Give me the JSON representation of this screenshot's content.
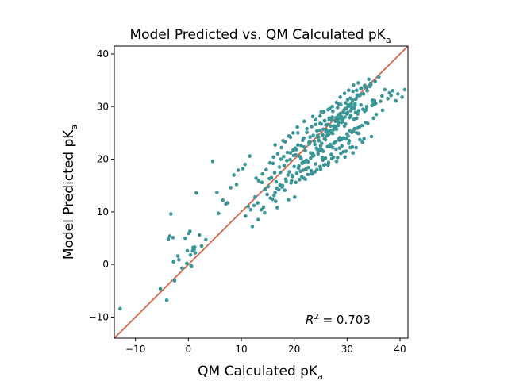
{
  "chart_data": {
    "type": "scatter",
    "title": "Model Predicted vs. QM Calculated pK",
    "title_sub": "a",
    "xlabel": "QM Calculated pK",
    "xlabel_sub": "a",
    "ylabel": "Model Predicted pK",
    "ylabel_sub": "a",
    "annotation": {
      "r_symbol": "R",
      "r_exponent": "2",
      "r_value": " = 0.703"
    },
    "xlim": [
      -14,
      41.5
    ],
    "ylim": [
      -14,
      41.5
    ],
    "xticks": [
      -10,
      0,
      10,
      20,
      30,
      40
    ],
    "yticks": [
      -10,
      0,
      10,
      20,
      30,
      40
    ],
    "xtick_labels": [
      "−10",
      "0",
      "10",
      "20",
      "30",
      "40"
    ],
    "ytick_labels": [
      "−10",
      "0",
      "10",
      "20",
      "30",
      "40"
    ],
    "grid": false,
    "reference_line": {
      "x": [
        -14,
        41.5
      ],
      "y": [
        -14,
        41.5
      ],
      "color": "#d2644a"
    },
    "marker_color": "#3a9597",
    "series": [
      {
        "x": [
          -12.9,
          -5.3,
          -4.1,
          -3.8,
          -3.3,
          -2.9,
          -2.6,
          -2.0,
          -1.2,
          -0.6,
          -0.2,
          0.1,
          0.4,
          0.6,
          0.9,
          1.3,
          2.1,
          3.3,
          -3.5,
          -2.8,
          -1.8,
          -0.3,
          0.8,
          1.2,
          0.3,
          2.5,
          0.5,
          1.1,
          1.5,
          4.6,
          5.4,
          6.5,
          7.1,
          8.0,
          8.6,
          9.4,
          10.3,
          10.7,
          11.6,
          12.8,
          13.3,
          14.0,
          14.7,
          15.4,
          16.1,
          16.9,
          17.6,
          18.3,
          19.0,
          19.8,
          20.6,
          5.7,
          7.4,
          9.1,
          11.3,
          12.6,
          14.5,
          13.2,
          15.9,
          16.8,
          18.2,
          19.5,
          20.5,
          12.1,
          13.8,
          15.7,
          16.4,
          18.9,
          20.1,
          21.7,
          22.6,
          23.5,
          24.4,
          25.2,
          25.9,
          26.8,
          27.5,
          28.1,
          28.9,
          29.6,
          30.4,
          31.3,
          31.9,
          32.7,
          33.6,
          34.4,
          35.3,
          36.0,
          37.1,
          38.3,
          39.2,
          40.4,
          15.1,
          16.6,
          18.8,
          20.9,
          21.5,
          22.3,
          23.1,
          23.9,
          24.7,
          25.4,
          26.2,
          26.9,
          27.8,
          28.5,
          29.3,
          30.1,
          30.8,
          31.6,
          32.4,
          33.1,
          33.8,
          34.5,
          17.4,
          18.6,
          19.9,
          20.4,
          21.1,
          21.9,
          22.8,
          23.6,
          24.3,
          25.1,
          25.8,
          26.6,
          27.3,
          28.2,
          28.8,
          29.7,
          30.6,
          31.1,
          31.8,
          32.6,
          33.3,
          34.1,
          34.9,
          13.9,
          15.3,
          16.3,
          17.2,
          18.1,
          19.2,
          20.3,
          21.3,
          22.1,
          22.9,
          23.8,
          24.6,
          25.5,
          26.3,
          27.1,
          27.9,
          28.6,
          29.4,
          30.2,
          31.0,
          31.7,
          32.5,
          33.4,
          19.3,
          20.7,
          21.8,
          22.4,
          23.3,
          24.1,
          24.9,
          25.6,
          26.4,
          27.2,
          28.0,
          28.7,
          29.5,
          30.3,
          31.2,
          32.1,
          22.5,
          23.4,
          24.2,
          25.0,
          25.7,
          26.5,
          27.4,
          28.3,
          29.1,
          29.9,
          30.7,
          31.5,
          26.1,
          27.0,
          27.7,
          28.4,
          29.2,
          30.0,
          30.9,
          10.8,
          12.4,
          14.2,
          16.5,
          17.8,
          19.1,
          21.4,
          22.2,
          23.2,
          24.5,
          25.3,
          26.7,
          27.6,
          28.6,
          29.8,
          31.4,
          32.2,
          33.9,
          35.5,
          36.7,
          23.7,
          25.5,
          27.3,
          28.9,
          30.5,
          32.3,
          15.5,
          17.1,
          18.5,
          19.7,
          21.2,
          22.7,
          24.0,
          25.9,
          27.9,
          29.0,
          30.4,
          16.0,
          17.5,
          18.7,
          20.2,
          21.6,
          23.0,
          24.8,
          26.0,
          28.1,
          29.6,
          31.6,
          33.0,
          34.7,
          36.3,
          38.0,
          11.8,
          13.1,
          14.9,
          16.7,
          17.3,
          18.4,
          19.6,
          20.8,
          22.0,
          23.6,
          25.0,
          26.8,
          28.4,
          30.0,
          31.9,
          33.5,
          35.0,
          14.4,
          16.2,
          17.7,
          19.4,
          21.0,
          22.6,
          24.3,
          25.8,
          27.4,
          29.3,
          31.0,
          32.9,
          34.6,
          20.0,
          21.6,
          23.1,
          24.7,
          26.3,
          27.8,
          29.4,
          31.2,
          32.8,
          18.0,
          19.8,
          21.3,
          22.9,
          24.4,
          26.1,
          27.7,
          29.1,
          30.7,
          32.2,
          33.7,
          35.2,
          25.2,
          26.9,
          28.5,
          30.2,
          31.8,
          22.1,
          23.9,
          25.6,
          27.1,
          28.8,
          30.6,
          32.4,
          24.9,
          26.6,
          28.3,
          29.9,
          31.5,
          27.5,
          29.2,
          30.9,
          26.2,
          28.0,
          29.7,
          31.3,
          25.4,
          27.0,
          28.6,
          30.3,
          23.3,
          24.9,
          26.5,
          28.2,
          29.8,
          31.7,
          33.2,
          21.9,
          23.5,
          25.1,
          26.7,
          28.4,
          30.1,
          31.9,
          34.3,
          24.5,
          26.0,
          27.6,
          29.0,
          30.5,
          32.0,
          33.6,
          35.4,
          37.7,
          39.6,
          40.9,
          16.4,
          17.9,
          19.3,
          20.7,
          22.4,
          24.0,
          25.7,
          27.2,
          28.7,
          30.8,
          32.6,
          34.8,
          36.6,
          38.6,
          20.3,
          21.8,
          23.4,
          25.0,
          26.4,
          28.0,
          29.6,
          31.1,
          27.3,
          29.5,
          31.8,
          33.3,
          35.1
        ],
        "y": [
          -8.4,
          -4.6,
          -6.8,
          4.8,
          9.6,
          5.1,
          -3.1,
          1.6,
          -0.7,
          5.0,
          2.6,
          5.9,
          1.8,
          -0.4,
          3.2,
          2.2,
          5.6,
          4.7,
          5.4,
          0.5,
          0.9,
          0.2,
          2.6,
          3.3,
          6.3,
          3.5,
          -0.2,
          2.9,
          13.6,
          19.6,
          13.7,
          12.2,
          11.5,
          14.6,
          17.0,
          17.9,
          18.2,
          19.0,
          20.6,
          16.4,
          15.9,
          17.2,
          18.0,
          19.3,
          20.4,
          21.0,
          22.2,
          23.3,
          24.4,
          25.0,
          26.1,
          9.7,
          11.7,
          15.2,
          11.0,
          12.8,
          14.3,
          8.5,
          12.4,
          10.8,
          14.1,
          15.9,
          17.3,
          7.2,
          10.4,
          16.5,
          13.7,
          12.3,
          12.8,
          17.9,
          19.5,
          20.6,
          21.8,
          23.0,
          23.7,
          25.4,
          26.3,
          27.7,
          28.1,
          29.6,
          30.1,
          29.7,
          32.0,
          33.5,
          33.6,
          34.4,
          34.8,
          35.6,
          33.2,
          32.1,
          31.1,
          31.8,
          14.8,
          15.7,
          17.0,
          18.7,
          19.2,
          19.8,
          21.2,
          22.8,
          23.5,
          24.6,
          25.2,
          26.3,
          27.2,
          27.7,
          28.8,
          28.9,
          30.5,
          31.4,
          32.1,
          32.4,
          33.0,
          34.2,
          17.5,
          19.7,
          20.7,
          21.8,
          20.5,
          22.3,
          23.1,
          24.5,
          25.4,
          26.7,
          27.3,
          27.8,
          29.1,
          29.8,
          30.4,
          30.7,
          31.6,
          32.9,
          33.1,
          33.4,
          34.0,
          35.2,
          30.9,
          15.6,
          16.3,
          17.4,
          18.5,
          18.8,
          19.9,
          20.8,
          20.1,
          21.6,
          22.9,
          23.4,
          24.2,
          25.7,
          26.6,
          27.4,
          27.9,
          28.4,
          29.3,
          30.3,
          31.2,
          31.5,
          32.3,
          33.9,
          21.2,
          22.7,
          24.0,
          25.1,
          26.2,
          27.5,
          28.2,
          29.0,
          29.4,
          30.0,
          30.8,
          31.8,
          32.5,
          33.1,
          34.1,
          34.5,
          19.6,
          21.1,
          22.1,
          22.6,
          23.9,
          24.7,
          25.6,
          26.4,
          27.1,
          28.7,
          29.2,
          30.6,
          24.4,
          25.0,
          26.0,
          26.9,
          27.6,
          28.6,
          29.9,
          9.2,
          11.2,
          10.9,
          12.0,
          15.0,
          17.6,
          16.7,
          18.1,
          17.8,
          21.0,
          20.3,
          22.4,
          23.1,
          24.1,
          23.9,
          25.8,
          24.9,
          26.8,
          28.5,
          29.3,
          20.7,
          21.5,
          22.2,
          23.7,
          25.4,
          26.1,
          12.6,
          14.2,
          15.8,
          16.7,
          17.7,
          18.4,
          19.1,
          20.2,
          21.9,
          22.5,
          23.5,
          19.2,
          20.0,
          21.3,
          22.1,
          23.6,
          24.2,
          25.5,
          26.5,
          27.3,
          28.0,
          28.9,
          29.5,
          30.2,
          31.0,
          32.6,
          10.4,
          11.7,
          13.3,
          14.5,
          15.1,
          16.2,
          16.9,
          18.3,
          19.5,
          20.9,
          22.0,
          22.8,
          23.8,
          24.8,
          25.9,
          27.0,
          27.8,
          9.8,
          13.1,
          14.7,
          15.5,
          16.1,
          17.1,
          18.0,
          19.0,
          20.4,
          21.4,
          22.3,
          23.2,
          24.3,
          18.6,
          19.4,
          20.2,
          21.6,
          22.4,
          23.3,
          24.0,
          25.3,
          26.4,
          20.5,
          21.7,
          22.6,
          23.4,
          24.5,
          25.6,
          26.3,
          27.4,
          28.3,
          29.2,
          30.0,
          31.1,
          21.8,
          22.5,
          23.6,
          24.4,
          25.0,
          16.2,
          17.6,
          18.9,
          20.1,
          21.1,
          22.2,
          23.7,
          26.8,
          27.5,
          28.4,
          29.7,
          30.3,
          23.0,
          24.0,
          25.1,
          24.5,
          25.7,
          26.7,
          27.6,
          19.8,
          20.9,
          22.1,
          23.0,
          17.3,
          18.6,
          19.4,
          20.3,
          21.5,
          22.2,
          23.9,
          27.2,
          28.1,
          29.0,
          29.6,
          30.5,
          31.3,
          32.2,
          33.8,
          24.1,
          25.2,
          26.1,
          27.0,
          27.9,
          28.6,
          29.4,
          30.6,
          31.5,
          32.4,
          33.2,
          22.7,
          23.5,
          24.2,
          25.0,
          25.8,
          26.6,
          27.3,
          28.0,
          28.7,
          29.5,
          30.3,
          31.2,
          32.0,
          33.0,
          15.6,
          16.4,
          17.2,
          18.1,
          18.9,
          19.6,
          20.4,
          21.2,
          24.9,
          26.3,
          27.8,
          29.1,
          30.4
        ]
      }
    ]
  }
}
